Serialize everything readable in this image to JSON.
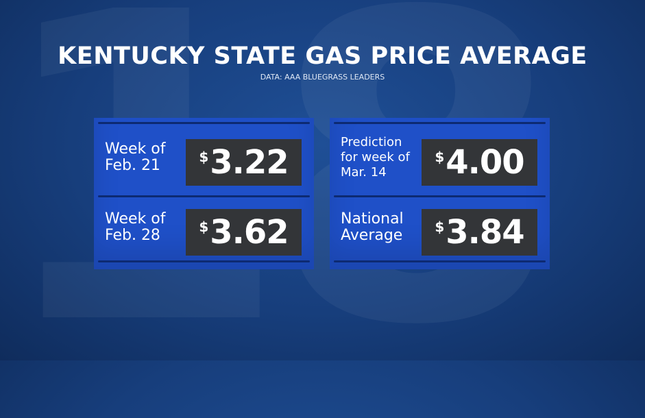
{
  "title": "KENTUCKY STATE GAS PRICE AVERAGE",
  "source": "DATA: AAA BLUEGRASS LEADERS",
  "panels": [
    {
      "items": [
        {
          "label": [
            "Week of",
            "Feb. 21"
          ],
          "currency": "$",
          "price": "3.22"
        },
        {
          "label": [
            "Week of",
            "Feb. 28"
          ],
          "currency": "$",
          "price": "3.62"
        }
      ]
    },
    {
      "items": [
        {
          "label": [
            "Prediction",
            "for week of",
            "Mar. 14"
          ],
          "currency": "$",
          "price": "4.00"
        },
        {
          "label": [
            "National",
            "Average"
          ],
          "currency": "$",
          "price": "3.84"
        }
      ]
    }
  ]
}
